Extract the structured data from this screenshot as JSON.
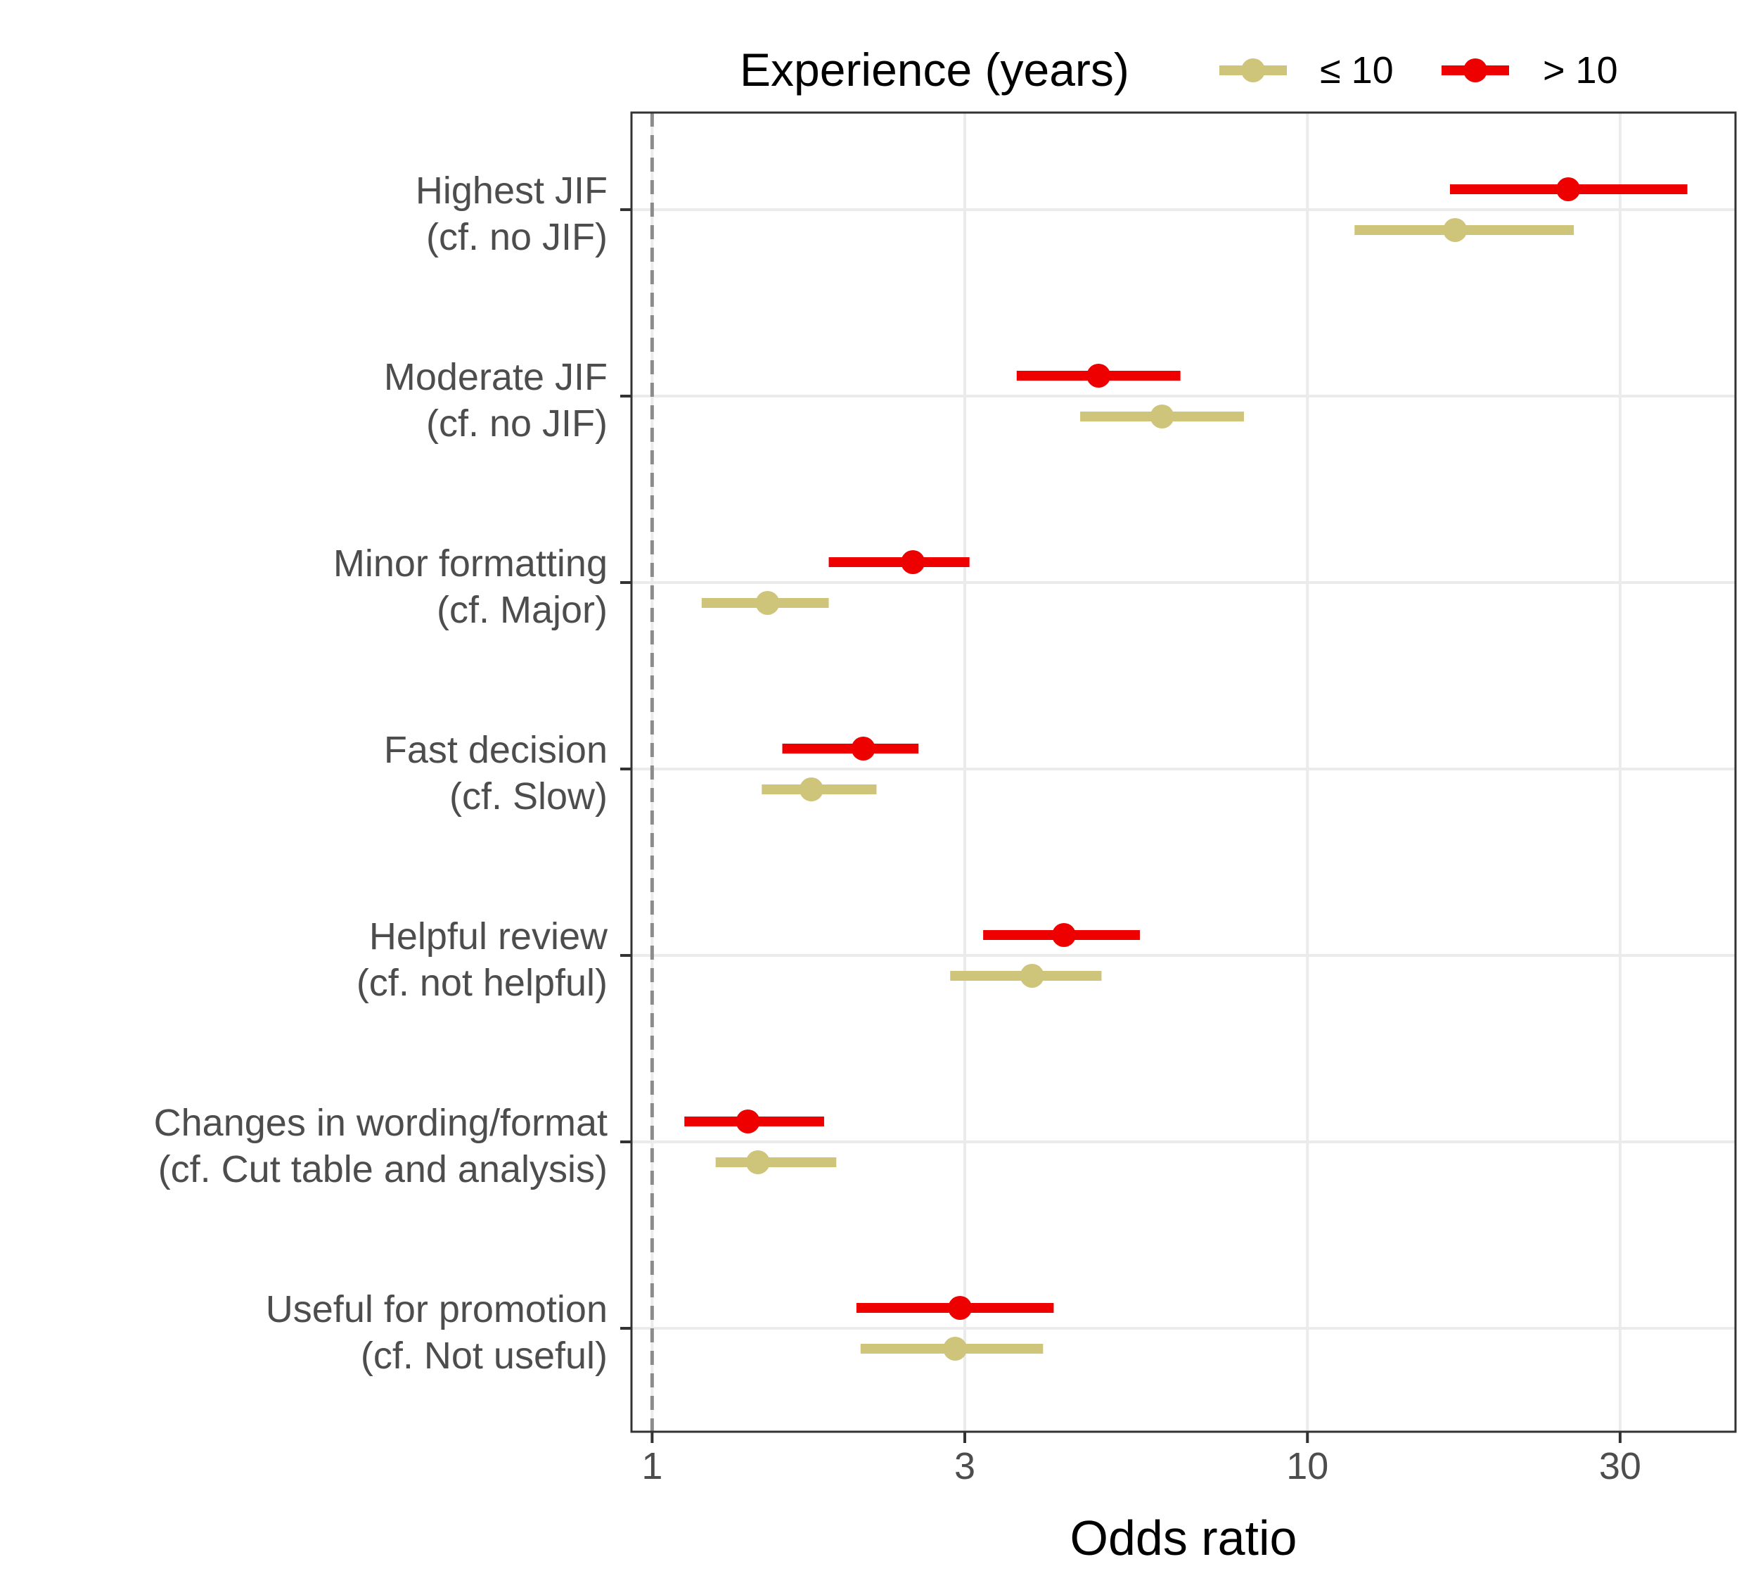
{
  "chart_data": {
    "type": "forest",
    "xlabel": "Odds ratio",
    "x_scale": "log",
    "xlim": [
      0.93,
      45
    ],
    "x_ticks": [
      1,
      3,
      10,
      30
    ],
    "x_tick_labels": [
      "1",
      "3",
      "10",
      "30"
    ],
    "reference_line": 1,
    "legend": {
      "title": "Experience (years)",
      "position": "top",
      "entries": [
        {
          "label": "≤ 10",
          "color": "#CEC47A"
        },
        {
          "label": "> 10",
          "color": "#EE0000"
        }
      ]
    },
    "categories": [
      [
        "Highest JIF",
        "(cf. no JIF)"
      ],
      [
        "Moderate JIF ",
        "(cf. no JIF)"
      ],
      [
        "Minor formatting",
        "(cf. Major)"
      ],
      [
        "Fast decision",
        "(cf. Slow)"
      ],
      [
        "Helpful review",
        "(cf. not helpful)"
      ],
      [
        "Changes in wording/format",
        "(cf. Cut table and analysis)"
      ],
      [
        "Useful for promotion",
        "(cf. Not useful)"
      ]
    ],
    "series": [
      {
        "name": "> 10",
        "color": "#EE0000",
        "estimates": [
          25.0,
          4.8,
          2.5,
          2.1,
          4.25,
          1.4,
          2.95
        ],
        "lower": [
          16.5,
          3.6,
          1.86,
          1.58,
          3.2,
          1.12,
          2.05
        ],
        "upper": [
          38.0,
          6.4,
          3.05,
          2.55,
          5.55,
          1.83,
          4.1
        ]
      },
      {
        "name": "≤ 10",
        "color": "#CEC47A",
        "estimates": [
          16.8,
          6.0,
          1.5,
          1.75,
          3.8,
          1.45,
          2.9
        ],
        "lower": [
          11.8,
          4.5,
          1.19,
          1.47,
          2.85,
          1.25,
          2.08
        ],
        "upper": [
          25.5,
          8.0,
          1.86,
          2.2,
          4.85,
          1.91,
          3.95
        ]
      }
    ]
  }
}
